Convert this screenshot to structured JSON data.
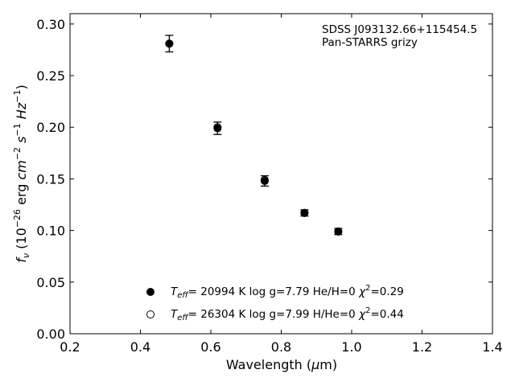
{
  "chart_data": {
    "type": "scatter",
    "xlabel": "Wavelength (μm)",
    "ylabel": "fν (10⁻²⁶ erg cm⁻² s⁻¹ Hz⁻¹)",
    "xlim": [
      0.2,
      1.4
    ],
    "ylim": [
      0.0,
      0.31
    ],
    "xticks": [
      "0.2",
      "0.4",
      "0.6",
      "0.8",
      "1.0",
      "1.2",
      "1.4"
    ],
    "yticks": [
      "0.00",
      "0.05",
      "0.10",
      "0.15",
      "0.20",
      "0.25",
      "0.30"
    ],
    "grid": false,
    "legend_placement": "bottom-center",
    "annotations": [
      "SDSS J093132.66+115454.5",
      "Pan-STARRS grizy"
    ],
    "series": [
      {
        "name": "Teff= 20994 K  log g=7.79  He/H=0  χ²=0.29",
        "marker": "filled-circle",
        "color": "#000000",
        "x": [
          0.482,
          0.619,
          0.753,
          0.866,
          0.962
        ],
        "y": [
          0.281,
          0.199,
          0.148,
          0.117,
          0.099
        ],
        "yerr": [
          0.008,
          0.006,
          0.005,
          0.003,
          0.003
        ]
      },
      {
        "name": "Teff= 26304 K  log g=7.99  H/He=0  χ²=0.44",
        "marker": "open-circle",
        "color": "#000000",
        "x": [
          0.482,
          0.619,
          0.753,
          0.866,
          0.962
        ],
        "y": [
          0.281,
          0.2,
          0.149,
          0.117,
          0.099
        ],
        "yerr": []
      }
    ]
  }
}
